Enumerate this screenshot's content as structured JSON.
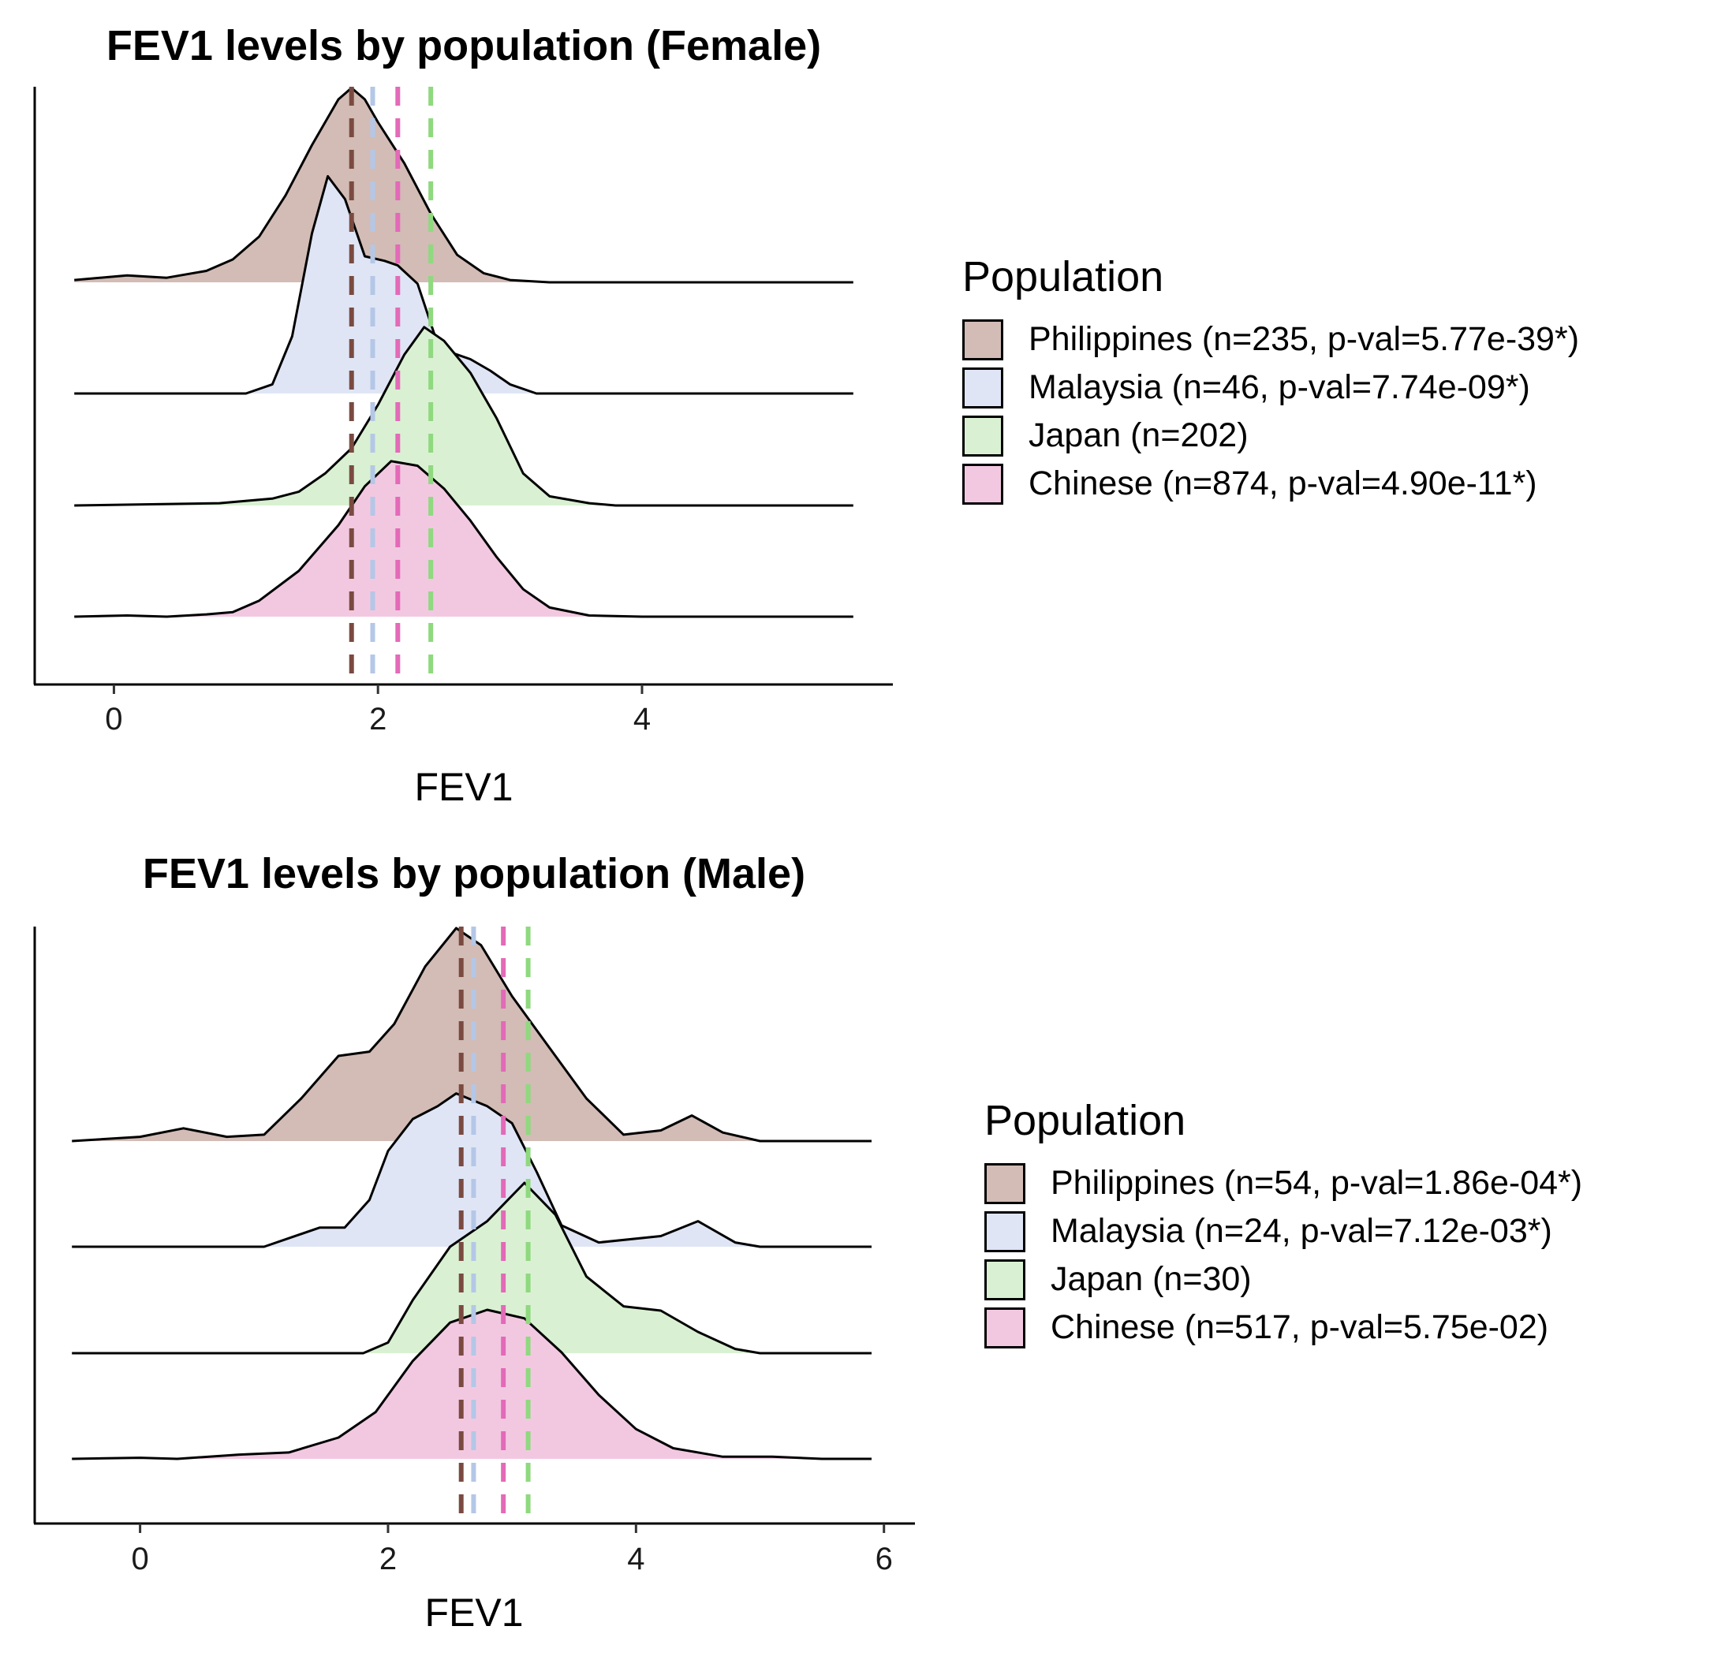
{
  "chart_data": [
    {
      "type": "ridgeline-density",
      "title": "FEV1 levels by population (Female)",
      "xlabel": "FEV1",
      "ylabel": "",
      "xlim": [
        -0.6,
        5.9
      ],
      "xticks": [
        "0",
        "2",
        "4"
      ],
      "tick_values": [
        0,
        2,
        4
      ],
      "grid": false,
      "legend_title": "Population",
      "legend_position": "right",
      "series": [
        {
          "name": "Philippines (n=235, p-val=5.77e-39*)",
          "color": "#d2bcb5",
          "mean": 1.8,
          "density": [
            [
              -0.3,
              0.01
            ],
            [
              0.1,
              0.03
            ],
            [
              0.4,
              0.02
            ],
            [
              0.7,
              0.05
            ],
            [
              0.9,
              0.1
            ],
            [
              1.1,
              0.2
            ],
            [
              1.3,
              0.38
            ],
            [
              1.5,
              0.6
            ],
            [
              1.7,
              0.8
            ],
            [
              1.8,
              0.85
            ],
            [
              1.9,
              0.8
            ],
            [
              2.0,
              0.7
            ],
            [
              2.2,
              0.52
            ],
            [
              2.4,
              0.3
            ],
            [
              2.6,
              0.12
            ],
            [
              2.8,
              0.04
            ],
            [
              3.0,
              0.01
            ],
            [
              3.3,
              0.0
            ],
            [
              5.6,
              0.0
            ]
          ]
        },
        {
          "name": "Malaysia (n=46, p-val=7.74e-09*)",
          "color": "#dfe5f5",
          "mean": 1.96,
          "density": [
            [
              -0.3,
              0.0
            ],
            [
              1.0,
              0.0
            ],
            [
              1.2,
              0.04
            ],
            [
              1.35,
              0.25
            ],
            [
              1.5,
              0.7
            ],
            [
              1.62,
              0.95
            ],
            [
              1.75,
              0.85
            ],
            [
              1.9,
              0.6
            ],
            [
              2.05,
              0.58
            ],
            [
              2.15,
              0.56
            ],
            [
              2.3,
              0.48
            ],
            [
              2.45,
              0.22
            ],
            [
              2.55,
              0.18
            ],
            [
              2.7,
              0.15
            ],
            [
              2.85,
              0.1
            ],
            [
              3.0,
              0.04
            ],
            [
              3.2,
              0.0
            ],
            [
              5.6,
              0.0
            ]
          ]
        },
        {
          "name": "Japan (n=202)",
          "color": "#d9f1d2",
          "mean": 2.4,
          "density": [
            [
              -0.3,
              0.0
            ],
            [
              0.8,
              0.01
            ],
            [
              1.2,
              0.03
            ],
            [
              1.4,
              0.06
            ],
            [
              1.6,
              0.14
            ],
            [
              1.8,
              0.25
            ],
            [
              2.0,
              0.44
            ],
            [
              2.2,
              0.66
            ],
            [
              2.35,
              0.78
            ],
            [
              2.5,
              0.72
            ],
            [
              2.7,
              0.58
            ],
            [
              2.9,
              0.38
            ],
            [
              3.1,
              0.14
            ],
            [
              3.3,
              0.04
            ],
            [
              3.6,
              0.01
            ],
            [
              3.8,
              0.0
            ],
            [
              5.6,
              0.0
            ]
          ]
        },
        {
          "name": "Chinese (n=874, p-val=4.90e-11*)",
          "color": "#f2c8e1",
          "mean": 2.15,
          "density": [
            [
              -0.3,
              0.0
            ],
            [
              0.1,
              0.005
            ],
            [
              0.4,
              0.0
            ],
            [
              0.7,
              0.01
            ],
            [
              0.9,
              0.02
            ],
            [
              1.1,
              0.07
            ],
            [
              1.4,
              0.2
            ],
            [
              1.7,
              0.4
            ],
            [
              1.9,
              0.57
            ],
            [
              2.1,
              0.68
            ],
            [
              2.3,
              0.66
            ],
            [
              2.5,
              0.56
            ],
            [
              2.7,
              0.42
            ],
            [
              2.9,
              0.26
            ],
            [
              3.1,
              0.12
            ],
            [
              3.3,
              0.04
            ],
            [
              3.6,
              0.005
            ],
            [
              4.0,
              0.0
            ],
            [
              5.6,
              0.0
            ]
          ]
        }
      ]
    },
    {
      "type": "ridgeline-density",
      "title": "FEV1 levels by population (Male)",
      "xlabel": "FEV1",
      "ylabel": "",
      "xlim": [
        -0.85,
        6.25
      ],
      "xticks": [
        "0",
        "2",
        "4",
        "6"
      ],
      "tick_values": [
        0,
        2,
        4,
        6
      ],
      "grid": false,
      "legend_title": "Population",
      "legend_position": "right",
      "series": [
        {
          "name": "Philippines (n=54, p-val=1.86e-04*)",
          "color": "#d2bcb5",
          "mean": 2.59,
          "density": [
            [
              -0.55,
              0.0
            ],
            [
              0.0,
              0.02
            ],
            [
              0.35,
              0.06
            ],
            [
              0.7,
              0.02
            ],
            [
              1.0,
              0.03
            ],
            [
              1.3,
              0.2
            ],
            [
              1.6,
              0.4
            ],
            [
              1.85,
              0.42
            ],
            [
              2.05,
              0.55
            ],
            [
              2.3,
              0.82
            ],
            [
              2.55,
              1.0
            ],
            [
              2.75,
              0.92
            ],
            [
              3.0,
              0.68
            ],
            [
              3.3,
              0.44
            ],
            [
              3.6,
              0.2
            ],
            [
              3.9,
              0.03
            ],
            [
              4.2,
              0.05
            ],
            [
              4.45,
              0.12
            ],
            [
              4.7,
              0.04
            ],
            [
              5.0,
              0.0
            ],
            [
              5.9,
              0.0
            ]
          ]
        },
        {
          "name": "Malaysia (n=24, p-val=7.12e-03*)",
          "color": "#dfe5f5",
          "mean": 2.69,
          "density": [
            [
              -0.55,
              0.0
            ],
            [
              1.0,
              0.0
            ],
            [
              1.2,
              0.04
            ],
            [
              1.45,
              0.09
            ],
            [
              1.65,
              0.09
            ],
            [
              1.85,
              0.22
            ],
            [
              2.0,
              0.45
            ],
            [
              2.2,
              0.6
            ],
            [
              2.4,
              0.66
            ],
            [
              2.55,
              0.72
            ],
            [
              2.8,
              0.66
            ],
            [
              3.0,
              0.58
            ],
            [
              3.2,
              0.35
            ],
            [
              3.4,
              0.1
            ],
            [
              3.7,
              0.02
            ],
            [
              4.2,
              0.05
            ],
            [
              4.5,
              0.12
            ],
            [
              4.8,
              0.02
            ],
            [
              5.0,
              0.0
            ],
            [
              5.9,
              0.0
            ]
          ]
        },
        {
          "name": "Japan (n=30)",
          "color": "#d9f1d2",
          "mean": 3.13,
          "density": [
            [
              -0.55,
              0.0
            ],
            [
              1.8,
              0.0
            ],
            [
              2.0,
              0.05
            ],
            [
              2.2,
              0.25
            ],
            [
              2.5,
              0.5
            ],
            [
              2.8,
              0.62
            ],
            [
              3.1,
              0.8
            ],
            [
              3.35,
              0.65
            ],
            [
              3.6,
              0.36
            ],
            [
              3.9,
              0.22
            ],
            [
              4.2,
              0.2
            ],
            [
              4.5,
              0.1
            ],
            [
              4.8,
              0.02
            ],
            [
              5.0,
              0.0
            ],
            [
              5.9,
              0.0
            ]
          ]
        },
        {
          "name": "Chinese (n=517, p-val=5.75e-02)",
          "color": "#f2c8e1",
          "mean": 2.93,
          "density": [
            [
              -0.55,
              0.0
            ],
            [
              0.0,
              0.005
            ],
            [
              0.3,
              0.0
            ],
            [
              0.8,
              0.02
            ],
            [
              1.2,
              0.03
            ],
            [
              1.6,
              0.1
            ],
            [
              1.9,
              0.22
            ],
            [
              2.2,
              0.46
            ],
            [
              2.5,
              0.64
            ],
            [
              2.8,
              0.7
            ],
            [
              3.1,
              0.66
            ],
            [
              3.4,
              0.5
            ],
            [
              3.7,
              0.3
            ],
            [
              4.0,
              0.14
            ],
            [
              4.3,
              0.05
            ],
            [
              4.7,
              0.01
            ],
            [
              5.1,
              0.01
            ],
            [
              5.5,
              0.0
            ],
            [
              5.9,
              0.0
            ]
          ]
        }
      ]
    }
  ],
  "mean_line_colors": {
    "Philippines": "#7a4a40",
    "Malaysia": "#b4c7e7",
    "Japan": "#8fd97f",
    "Chinese": "#e36ab8"
  }
}
